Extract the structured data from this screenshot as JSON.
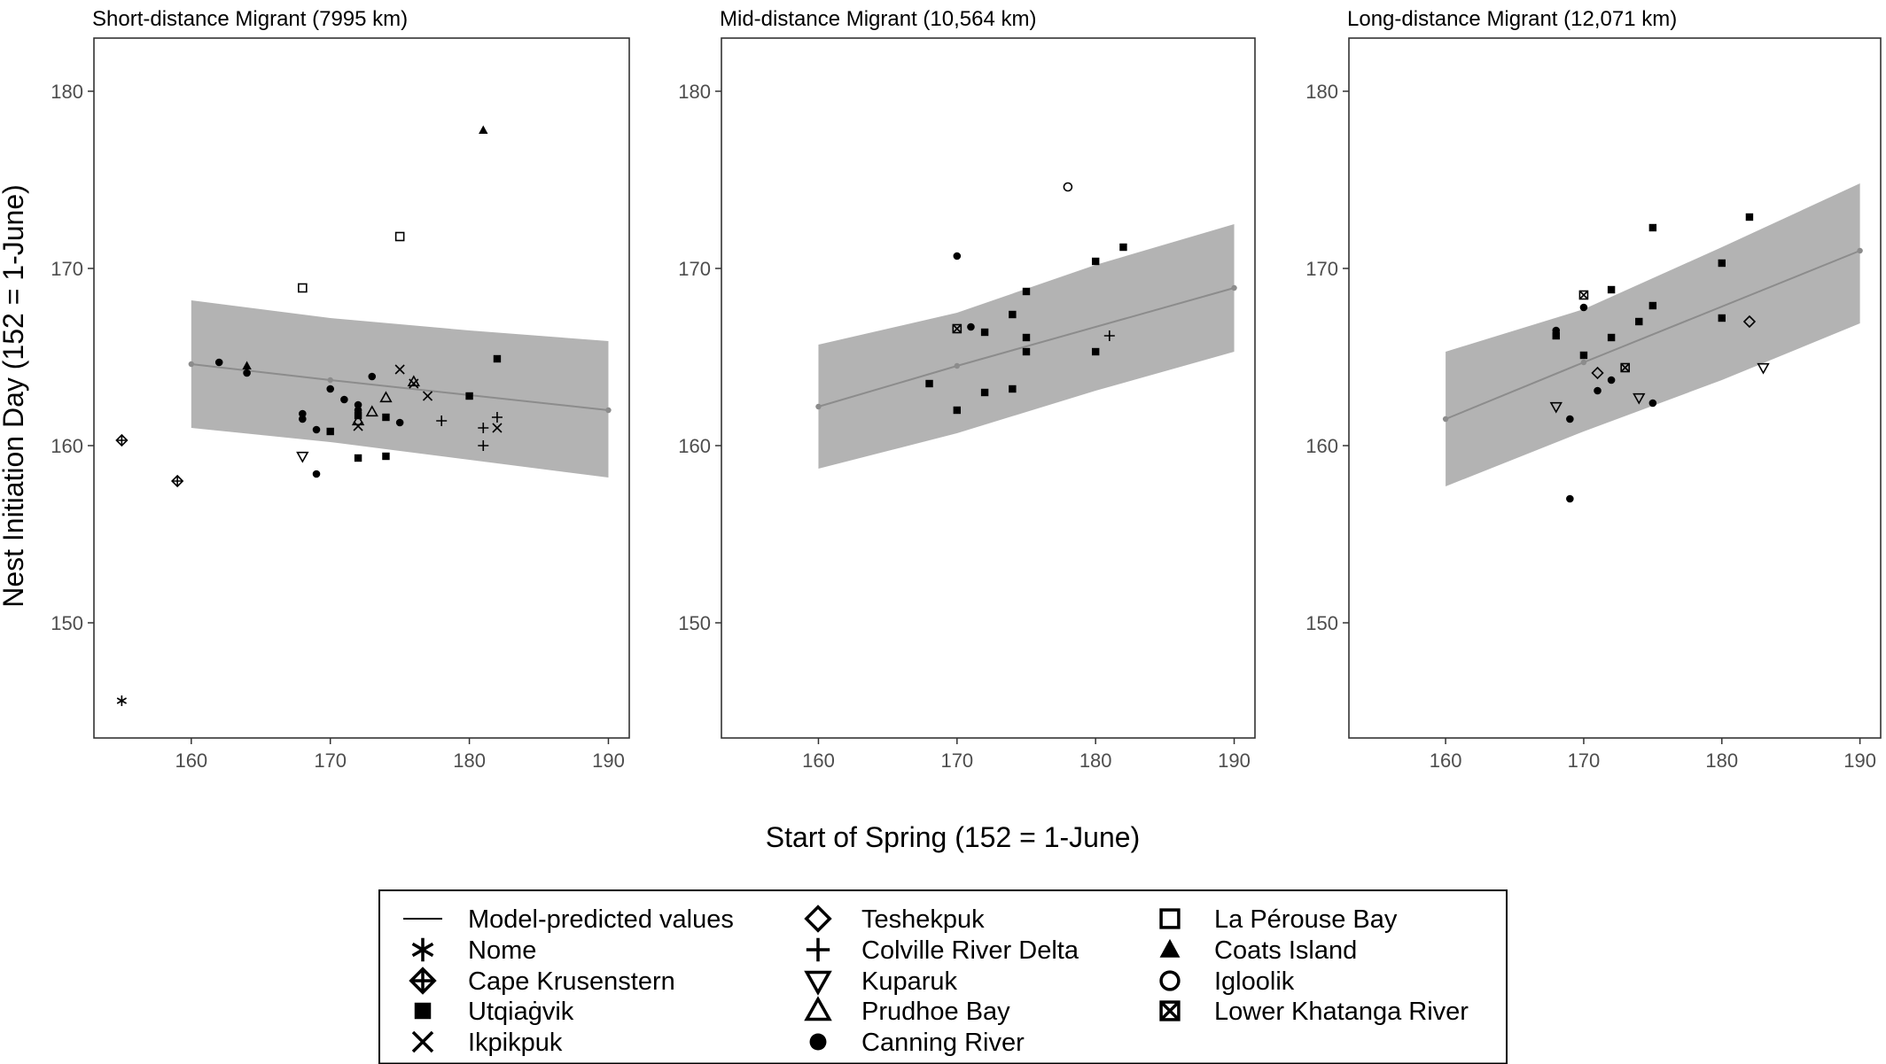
{
  "figure": {
    "ylabel": "Nest Initiation Day (152 = 1-June)",
    "xlabel": "Start of Spring (152 = 1-June)"
  },
  "colors": {
    "band": "#b3b3b3",
    "line": "#8c8c8c",
    "point": "#000000",
    "frame": "#333333",
    "tick_text": "#4d4d4d"
  },
  "legend": {
    "items": [
      {
        "symbol": "line",
        "label": "Model-predicted values"
      },
      {
        "symbol": "asterisk",
        "label": "Nome"
      },
      {
        "symbol": "diamond-plus",
        "label": "Cape Krusenstern"
      },
      {
        "symbol": "square-filled",
        "label": "Utqiaġvik"
      },
      {
        "symbol": "cross",
        "label": "Ikpikpuk"
      },
      {
        "symbol": "diamond-open",
        "label": "Teshekpuk"
      },
      {
        "symbol": "plus",
        "label": "Colville River Delta"
      },
      {
        "symbol": "triangle-down-open",
        "label": "Kuparuk"
      },
      {
        "symbol": "triangle-up-open",
        "label": "Prudhoe Bay"
      },
      {
        "symbol": "circle-filled",
        "label": "Canning River"
      },
      {
        "symbol": "square-open",
        "label": "La Pérouse Bay"
      },
      {
        "symbol": "triangle-up-filled",
        "label": "Coats Island"
      },
      {
        "symbol": "circle-open",
        "label": "Igloolik"
      },
      {
        "symbol": "square-x",
        "label": "Lower Khatanga River"
      }
    ]
  },
  "chart_data": [
    {
      "type": "scatter",
      "title": "Short-distance Migrant (7995 km)",
      "xlim": [
        153,
        191.5
      ],
      "ylim": [
        143.5,
        183
      ],
      "xticks": [
        160,
        170,
        180,
        190
      ],
      "yticks": [
        150,
        160,
        170,
        180
      ],
      "fit": {
        "x": [
          160,
          170,
          190
        ],
        "y": [
          164.6,
          163.7,
          162.0
        ]
      },
      "band": {
        "x": [
          160,
          170,
          180,
          190
        ],
        "upper": [
          168.2,
          167.2,
          166.5,
          165.9
        ],
        "lower": [
          161.0,
          160.2,
          159.2,
          158.2
        ]
      },
      "points": [
        {
          "x": 155,
          "y": 145.6,
          "s": "asterisk"
        },
        {
          "x": 155,
          "y": 160.3,
          "s": "diamond-plus"
        },
        {
          "x": 159,
          "y": 158.0,
          "s": "diamond-plus"
        },
        {
          "x": 162,
          "y": 164.7,
          "s": "circle-filled"
        },
        {
          "x": 164,
          "y": 164.5,
          "s": "triangle-up-filled"
        },
        {
          "x": 164,
          "y": 164.1,
          "s": "circle-filled"
        },
        {
          "x": 168,
          "y": 168.9,
          "s": "square-open"
        },
        {
          "x": 168,
          "y": 161.8,
          "s": "circle-filled"
        },
        {
          "x": 168,
          "y": 161.5,
          "s": "circle-filled"
        },
        {
          "x": 168,
          "y": 159.4,
          "s": "triangle-down-open"
        },
        {
          "x": 169,
          "y": 160.9,
          "s": "circle-filled"
        },
        {
          "x": 169,
          "y": 158.4,
          "s": "circle-filled"
        },
        {
          "x": 170,
          "y": 163.2,
          "s": "circle-filled"
        },
        {
          "x": 170,
          "y": 160.8,
          "s": "square-filled"
        },
        {
          "x": 171,
          "y": 162.6,
          "s": "circle-filled"
        },
        {
          "x": 172,
          "y": 162.3,
          "s": "circle-filled"
        },
        {
          "x": 172,
          "y": 162.0,
          "s": "circle-filled"
        },
        {
          "x": 172,
          "y": 161.7,
          "s": "square-filled"
        },
        {
          "x": 172,
          "y": 161.4,
          "s": "triangle-up-open"
        },
        {
          "x": 172,
          "y": 161.1,
          "s": "cross"
        },
        {
          "x": 172,
          "y": 159.3,
          "s": "square-filled"
        },
        {
          "x": 173,
          "y": 163.9,
          "s": "circle-filled"
        },
        {
          "x": 173,
          "y": 161.9,
          "s": "triangle-up-open"
        },
        {
          "x": 174,
          "y": 162.7,
          "s": "triangle-up-open"
        },
        {
          "x": 174,
          "y": 161.6,
          "s": "square-filled"
        },
        {
          "x": 174,
          "y": 159.4,
          "s": "square-filled"
        },
        {
          "x": 175,
          "y": 171.8,
          "s": "square-open"
        },
        {
          "x": 175,
          "y": 164.3,
          "s": "cross"
        },
        {
          "x": 175,
          "y": 161.3,
          "s": "circle-filled"
        },
        {
          "x": 176,
          "y": 163.6,
          "s": "triangle-up-open"
        },
        {
          "x": 176,
          "y": 163.5,
          "s": "cross"
        },
        {
          "x": 177,
          "y": 162.8,
          "s": "cross"
        },
        {
          "x": 178,
          "y": 161.4,
          "s": "plus"
        },
        {
          "x": 180,
          "y": 162.8,
          "s": "square-filled"
        },
        {
          "x": 181,
          "y": 177.8,
          "s": "triangle-up-filled"
        },
        {
          "x": 181,
          "y": 161.0,
          "s": "plus"
        },
        {
          "x": 181,
          "y": 160.0,
          "s": "plus"
        },
        {
          "x": 182,
          "y": 164.9,
          "s": "square-filled"
        },
        {
          "x": 182,
          "y": 161.6,
          "s": "plus"
        },
        {
          "x": 182,
          "y": 161.0,
          "s": "cross"
        }
      ]
    },
    {
      "type": "scatter",
      "title": "Mid-distance Migrant (10,564 km)",
      "xlim": [
        153,
        191.5
      ],
      "ylim": [
        143.5,
        183
      ],
      "xticks": [
        160,
        170,
        180,
        190
      ],
      "yticks": [
        150,
        160,
        170,
        180
      ],
      "fit": {
        "x": [
          160,
          170,
          190
        ],
        "y": [
          162.2,
          164.5,
          168.9
        ]
      },
      "band": {
        "x": [
          160,
          170,
          180,
          190
        ],
        "upper": [
          165.7,
          167.5,
          170.2,
          172.5
        ],
        "lower": [
          158.7,
          160.7,
          163.1,
          165.3
        ]
      },
      "points": [
        {
          "x": 168,
          "y": 163.5,
          "s": "square-filled"
        },
        {
          "x": 170,
          "y": 170.7,
          "s": "circle-filled"
        },
        {
          "x": 170,
          "y": 166.6,
          "s": "square-x"
        },
        {
          "x": 170,
          "y": 162.0,
          "s": "square-filled"
        },
        {
          "x": 171,
          "y": 166.7,
          "s": "circle-filled"
        },
        {
          "x": 172,
          "y": 166.4,
          "s": "square-filled"
        },
        {
          "x": 172,
          "y": 163.0,
          "s": "square-filled"
        },
        {
          "x": 174,
          "y": 167.4,
          "s": "square-filled"
        },
        {
          "x": 174,
          "y": 163.2,
          "s": "square-filled"
        },
        {
          "x": 175,
          "y": 168.7,
          "s": "square-filled"
        },
        {
          "x": 175,
          "y": 166.1,
          "s": "square-filled"
        },
        {
          "x": 175,
          "y": 165.3,
          "s": "square-filled"
        },
        {
          "x": 178,
          "y": 174.6,
          "s": "circle-open"
        },
        {
          "x": 180,
          "y": 170.4,
          "s": "square-filled"
        },
        {
          "x": 180,
          "y": 165.3,
          "s": "square-filled"
        },
        {
          "x": 181,
          "y": 166.2,
          "s": "plus"
        },
        {
          "x": 182,
          "y": 171.2,
          "s": "square-filled"
        }
      ]
    },
    {
      "type": "scatter",
      "title": "Long-distance Migrant (12,071 km)",
      "xlim": [
        153,
        191.5
      ],
      "ylim": [
        143.5,
        183
      ],
      "xticks": [
        160,
        170,
        180,
        190
      ],
      "yticks": [
        150,
        160,
        170,
        180
      ],
      "fit": {
        "x": [
          160,
          170,
          190
        ],
        "y": [
          161.5,
          164.7,
          171.0
        ]
      },
      "band": {
        "x": [
          160,
          170,
          180,
          190
        ],
        "upper": [
          165.3,
          167.7,
          171.2,
          174.8
        ],
        "lower": [
          157.7,
          160.8,
          163.7,
          166.9
        ]
      },
      "points": [
        {
          "x": 168,
          "y": 166.5,
          "s": "circle-filled"
        },
        {
          "x": 168,
          "y": 166.2,
          "s": "square-filled"
        },
        {
          "x": 168,
          "y": 162.2,
          "s": "triangle-down-open"
        },
        {
          "x": 169,
          "y": 161.5,
          "s": "circle-filled"
        },
        {
          "x": 169,
          "y": 157.0,
          "s": "circle-filled"
        },
        {
          "x": 170,
          "y": 168.5,
          "s": "square-x"
        },
        {
          "x": 170,
          "y": 167.8,
          "s": "circle-filled"
        },
        {
          "x": 170,
          "y": 165.1,
          "s": "square-filled"
        },
        {
          "x": 171,
          "y": 164.1,
          "s": "diamond-open"
        },
        {
          "x": 171,
          "y": 163.1,
          "s": "circle-filled"
        },
        {
          "x": 172,
          "y": 168.8,
          "s": "square-filled"
        },
        {
          "x": 172,
          "y": 166.1,
          "s": "square-filled"
        },
        {
          "x": 172,
          "y": 163.7,
          "s": "circle-filled"
        },
        {
          "x": 173,
          "y": 164.4,
          "s": "square-x"
        },
        {
          "x": 174,
          "y": 167.0,
          "s": "square-filled"
        },
        {
          "x": 174,
          "y": 162.7,
          "s": "triangle-down-open"
        },
        {
          "x": 175,
          "y": 172.3,
          "s": "square-filled"
        },
        {
          "x": 175,
          "y": 167.9,
          "s": "square-filled"
        },
        {
          "x": 175,
          "y": 162.4,
          "s": "circle-filled"
        },
        {
          "x": 180,
          "y": 170.3,
          "s": "square-filled"
        },
        {
          "x": 180,
          "y": 167.2,
          "s": "square-filled"
        },
        {
          "x": 182,
          "y": 172.9,
          "s": "square-filled"
        },
        {
          "x": 182,
          "y": 167.0,
          "s": "diamond-open"
        },
        {
          "x": 183,
          "y": 164.4,
          "s": "triangle-down-open"
        }
      ]
    }
  ]
}
